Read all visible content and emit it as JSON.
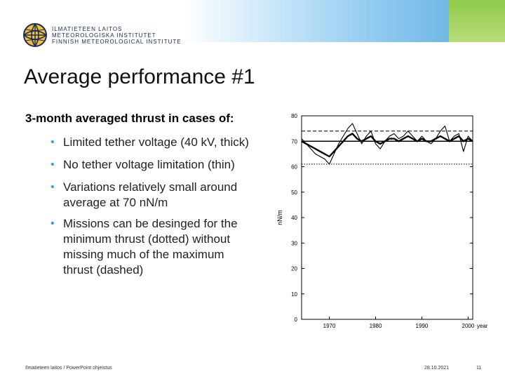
{
  "institute": {
    "line1": "ILMATIETEEN LAITOS",
    "line2": "METEOROLOGISKA INSTITUTET",
    "line3": "FINNISH METEOROLOGICAL INSTITUTE"
  },
  "slide": {
    "title": "Average performance #1",
    "lead": "3-month averaged thrust in cases of:",
    "bullets": [
      "Limited tether voltage (40 kV, thick)",
      "No tether voltage limitation (thin)",
      "Variations relatively small around",
      "average at 70 nN/m",
      "Missions can be desinged for the",
      "minimum thrust (dotted) without",
      "missing much of the maximum",
      "thrust (dashed)"
    ]
  },
  "footer": {
    "org": "Ilmatieteen laitos / PowerPoint ohjeistus",
    "date": "28.10.2021",
    "page": "11"
  },
  "colors": {
    "bullet": "#3aa0e0",
    "brand_blue": "#1b2b63"
  },
  "chart_data": {
    "type": "line",
    "title": "",
    "xlabel": "year",
    "ylabel": "nN/m",
    "xlim": [
      1964,
      2001
    ],
    "ylim": [
      0,
      80
    ],
    "x_ticks": [
      1970,
      1980,
      1990,
      2000
    ],
    "y_ticks": [
      0,
      10,
      20,
      30,
      40,
      50,
      60,
      70,
      80
    ],
    "reference_lines": [
      {
        "name": "maximum (dashed)",
        "value": 74
      },
      {
        "name": "average",
        "value": 70
      },
      {
        "name": "minimum (dotted)",
        "value": 61
      }
    ],
    "x": [
      1964,
      1965,
      1966,
      1967,
      1968,
      1969,
      1970,
      1971,
      1972,
      1973,
      1974,
      1975,
      1976,
      1977,
      1978,
      1979,
      1980,
      1981,
      1982,
      1983,
      1984,
      1985,
      1986,
      1987,
      1988,
      1989,
      1990,
      1991,
      1992,
      1993,
      1994,
      1995,
      1996,
      1997,
      1998,
      1999,
      2000,
      2001
    ],
    "series": [
      {
        "name": "Limited tether voltage (40 kV, thick)",
        "values": [
          70,
          69,
          68,
          67,
          66,
          65,
          64,
          66,
          68,
          70,
          72,
          73,
          71,
          70,
          71,
          72,
          70,
          69,
          70,
          71,
          71,
          70,
          71,
          72,
          71,
          70,
          71,
          70,
          70,
          71,
          72,
          71,
          70,
          71,
          72,
          70,
          71,
          70
        ]
      },
      {
        "name": "No tether voltage limitation (thin)",
        "values": [
          71,
          69,
          67,
          65,
          64,
          63,
          61,
          65,
          69,
          72,
          75,
          77,
          73,
          69,
          72,
          74,
          69,
          67,
          70,
          72,
          73,
          71,
          72,
          74,
          72,
          70,
          72,
          70,
          69,
          71,
          74,
          76,
          70,
          72,
          73,
          66,
          72,
          70
        ]
      }
    ]
  }
}
